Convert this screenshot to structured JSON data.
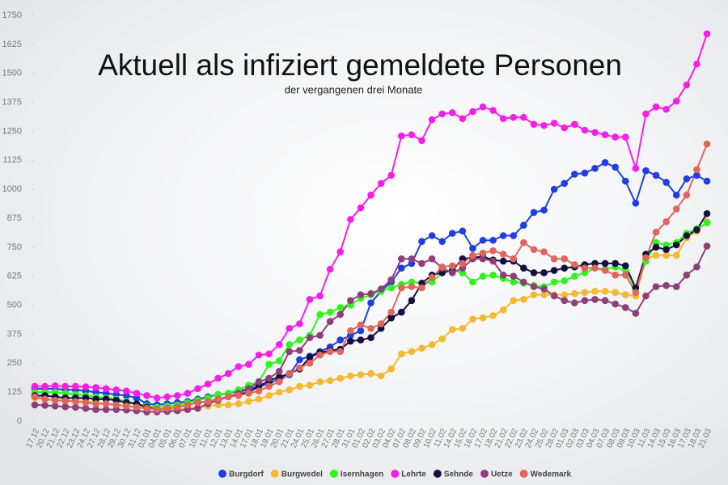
{
  "chart_data": {
    "type": "line",
    "title": "Aktuell als infiziert gemeldete Personen",
    "subtitle": "der vergangenen drei Monate",
    "categories": [
      "17.12",
      "20.12",
      "21.12",
      "22.12",
      "23.12",
      "24.12",
      "27.12",
      "28.12",
      "29.12",
      "30.12",
      "31.12",
      "03.01",
      "04.01",
      "05.01",
      "06.01",
      "07.01",
      "10.01",
      "11.01",
      "12.01",
      "13.01",
      "14.01",
      "17.01",
      "18.01",
      "19.01",
      "20.01",
      "21.01",
      "24.01",
      "25.01",
      "26.01",
      "27.01",
      "28.01",
      "31.01",
      "01.02",
      "02.02",
      "03.02",
      "04.02",
      "07.02",
      "08.02",
      "09.02",
      "10.02",
      "11.02",
      "14.02",
      "15.02",
      "16.02",
      "17.02",
      "18.02",
      "21.02",
      "22.02",
      "23.02",
      "24.02",
      "25.02",
      "28.02",
      "01.03",
      "02.03",
      "03.03",
      "04.03",
      "07.03",
      "08.03",
      "09.03",
      "10.03",
      "11.03",
      "14.03",
      "15.03",
      "16.03",
      "17.03",
      "18.03",
      "21.03"
    ],
    "ylim": [
      0,
      1750
    ],
    "yticks": [
      0,
      125,
      250,
      375,
      500,
      625,
      750,
      875,
      1000,
      1125,
      1250,
      1375,
      1500,
      1625,
      1750
    ],
    "series": [
      {
        "name": "Burgdorf",
        "color": "#1f3fe0",
        "values": [
          140,
          140,
          140,
          135,
          135,
          130,
          125,
          120,
          115,
          110,
          100,
          75,
          70,
          75,
          80,
          85,
          95,
          105,
          115,
          120,
          130,
          140,
          150,
          160,
          185,
          200,
          265,
          280,
          300,
          320,
          350,
          370,
          390,
          510,
          560,
          600,
          660,
          680,
          775,
          800,
          775,
          810,
          820,
          745,
          780,
          780,
          800,
          800,
          845,
          900,
          910,
          1000,
          1025,
          1065,
          1070,
          1090,
          1115,
          1095,
          1035,
          940,
          1080,
          1060,
          1030,
          975,
          1045,
          1060,
          1035
        ]
      },
      {
        "name": "Burgwedel",
        "color": "#f5b82e",
        "values": [
          100,
          95,
          90,
          90,
          85,
          85,
          80,
          75,
          70,
          65,
          60,
          55,
          50,
          50,
          50,
          55,
          60,
          65,
          70,
          70,
          75,
          85,
          95,
          110,
          125,
          135,
          150,
          155,
          170,
          175,
          185,
          195,
          200,
          205,
          195,
          225,
          290,
          300,
          315,
          330,
          355,
          395,
          400,
          440,
          445,
          455,
          480,
          520,
          525,
          545,
          545,
          545,
          545,
          550,
          555,
          560,
          560,
          555,
          545,
          540,
          700,
          715,
          715,
          715,
          790,
          820,
          860
        ]
      },
      {
        "name": "Isernhagen",
        "color": "#2ef51a",
        "values": [
          125,
          125,
          125,
          120,
          115,
          110,
          105,
          100,
          95,
          85,
          75,
          65,
          60,
          65,
          70,
          80,
          90,
          100,
          115,
          120,
          135,
          155,
          170,
          245,
          260,
          330,
          350,
          370,
          460,
          470,
          490,
          500,
          530,
          545,
          560,
          575,
          590,
          600,
          595,
          600,
          640,
          650,
          640,
          600,
          625,
          630,
          615,
          600,
          595,
          585,
          580,
          600,
          605,
          625,
          640,
          660,
          655,
          665,
          650,
          570,
          690,
          770,
          760,
          770,
          810,
          830,
          855
        ]
      },
      {
        "name": "Lehrte",
        "color": "#f51ee8",
        "values": [
          150,
          150,
          152,
          150,
          150,
          148,
          145,
          140,
          135,
          130,
          120,
          110,
          100,
          105,
          110,
          120,
          140,
          160,
          185,
          205,
          235,
          245,
          285,
          290,
          330,
          400,
          420,
          525,
          540,
          655,
          730,
          870,
          920,
          975,
          1025,
          1060,
          1230,
          1235,
          1210,
          1300,
          1325,
          1330,
          1305,
          1335,
          1355,
          1340,
          1305,
          1310,
          1310,
          1280,
          1275,
          1285,
          1265,
          1280,
          1255,
          1245,
          1235,
          1225,
          1225,
          1090,
          1325,
          1355,
          1345,
          1380,
          1450,
          1540,
          1670
        ]
      },
      {
        "name": "Sehnde",
        "color": "#141040",
        "values": [
          110,
          110,
          105,
          100,
          100,
          100,
          95,
          95,
          90,
          80,
          75,
          60,
          50,
          55,
          60,
          70,
          80,
          85,
          95,
          105,
          115,
          125,
          150,
          175,
          190,
          205,
          225,
          275,
          295,
          305,
          310,
          345,
          350,
          360,
          400,
          445,
          470,
          520,
          595,
          630,
          640,
          650,
          700,
          705,
          710,
          695,
          690,
          690,
          660,
          640,
          640,
          650,
          660,
          665,
          675,
          680,
          680,
          680,
          670,
          575,
          720,
          750,
          740,
          760,
          800,
          825,
          895
        ]
      },
      {
        "name": "Uetze",
        "color": "#8e3f7a",
        "values": [
          70,
          68,
          65,
          62,
          60,
          55,
          50,
          50,
          50,
          48,
          45,
          40,
          40,
          42,
          45,
          50,
          55,
          75,
          90,
          105,
          120,
          140,
          170,
          185,
          215,
          300,
          305,
          360,
          370,
          430,
          460,
          520,
          545,
          550,
          570,
          610,
          700,
          700,
          680,
          700,
          660,
          640,
          660,
          700,
          700,
          690,
          630,
          625,
          600,
          580,
          570,
          540,
          520,
          510,
          520,
          525,
          520,
          505,
          490,
          465,
          540,
          580,
          585,
          580,
          630,
          665,
          755
        ]
      },
      {
        "name": "Wedemark",
        "color": "#e0665a",
        "values": [
          105,
          95,
          90,
          88,
          85,
          80,
          75,
          75,
          70,
          65,
          60,
          55,
          50,
          55,
          60,
          70,
          80,
          85,
          95,
          105,
          110,
          120,
          130,
          150,
          170,
          205,
          230,
          250,
          285,
          300,
          300,
          390,
          415,
          400,
          420,
          470,
          575,
          580,
          575,
          620,
          665,
          670,
          680,
          715,
          725,
          735,
          720,
          700,
          770,
          740,
          730,
          700,
          700,
          675,
          660,
          660,
          650,
          630,
          630,
          555,
          705,
          815,
          860,
          915,
          975,
          1085,
          1195
        ]
      }
    ]
  }
}
